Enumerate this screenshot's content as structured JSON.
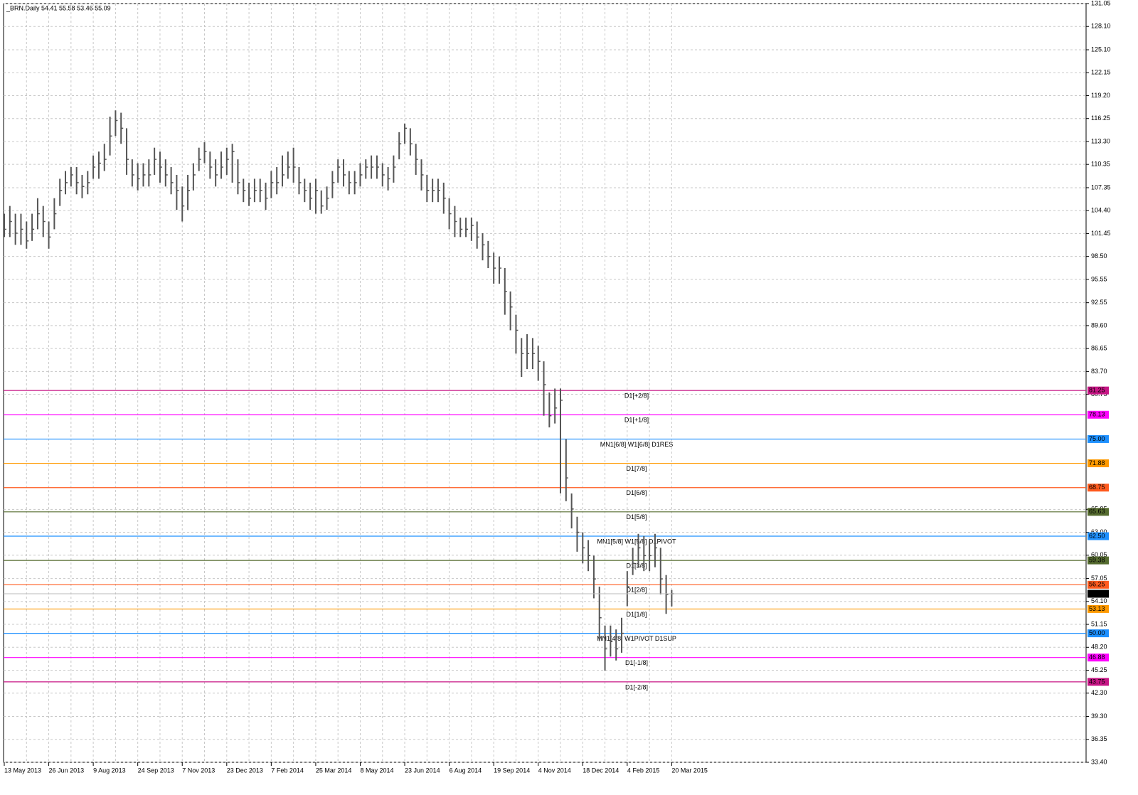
{
  "chart_data": {
    "type": "ohlc",
    "title": "_BRN.Daily  54.41 55.58 53.46 55.09",
    "categories": [
      "13 May 2013",
      null,
      null,
      null,
      null,
      null,
      null,
      null,
      "26 Jun 2013",
      null,
      null,
      null,
      null,
      null,
      null,
      null,
      "9 Aug 2013",
      null,
      null,
      null,
      null,
      null,
      null,
      null,
      "24 Sep 2013",
      null,
      null,
      null,
      null,
      null,
      null,
      null,
      "7 Nov 2013",
      null,
      null,
      null,
      null,
      null,
      null,
      null,
      "23 Dec 2013",
      null,
      null,
      null,
      null,
      null,
      null,
      null,
      "7 Feb 2014",
      null,
      null,
      null,
      null,
      null,
      null,
      null,
      "25 Mar 2014",
      null,
      null,
      null,
      null,
      null,
      null,
      null,
      "8 May 2014",
      null,
      null,
      null,
      null,
      null,
      null,
      null,
      "23 Jun 2014",
      null,
      null,
      null,
      null,
      null,
      null,
      null,
      "6 Aug 2014",
      null,
      null,
      null,
      null,
      null,
      null,
      null,
      "19 Sep 2014",
      null,
      null,
      null,
      null,
      null,
      null,
      null,
      "4 Nov 2014",
      null,
      null,
      null,
      null,
      null,
      null,
      null,
      "18 Dec 2014",
      null,
      null,
      null,
      null,
      null,
      null,
      null,
      "4 Feb 2015",
      null,
      null,
      null,
      null,
      null,
      null,
      null,
      "20 Mar 2015"
    ],
    "high": [
      104,
      105,
      104,
      104,
      103,
      104,
      106,
      105,
      103,
      106,
      108.5,
      109.5,
      110,
      110,
      109,
      109.5,
      111.5,
      112,
      113,
      116.5,
      117.3,
      117,
      115,
      111,
      110.5,
      110.5,
      111,
      112.5,
      112,
      111,
      110,
      109,
      107.5,
      109,
      110.5,
      112.5,
      113.2,
      112,
      111,
      112,
      112.5,
      113,
      111,
      108.5,
      108,
      108.5,
      108.5,
      108,
      109.5,
      110,
      111.5,
      112,
      112.5,
      110,
      108.5,
      108,
      108.5,
      107,
      107.5,
      109.5,
      111,
      111,
      109.5,
      109.5,
      110.5,
      111,
      111.5,
      111.5,
      110.5,
      110,
      111.5,
      114.5,
      115.6,
      115,
      113,
      111,
      109,
      108.5,
      108.5,
      108,
      106,
      105,
      103.5,
      103.5,
      103.5,
      103,
      101.5,
      100.5,
      99,
      98.5,
      97,
      94,
      91,
      88,
      88.5,
      88,
      87,
      85,
      81,
      81.5,
      81.5,
      75,
      68,
      65,
      63,
      62,
      60,
      56,
      51,
      51,
      50.5,
      52,
      58,
      61,
      62.8,
      62.5,
      62,
      62.8,
      61,
      57.5,
      55.58
    ],
    "low": [
      101,
      101,
      100,
      100,
      99.5,
      100.5,
      102,
      101,
      99.5,
      102,
      105,
      106.5,
      107.5,
      106.5,
      106,
      106.5,
      108.5,
      108.5,
      109.5,
      111.5,
      114,
      113,
      109,
      107.5,
      107,
      107.5,
      107.5,
      109,
      108,
      107.5,
      106.5,
      104.5,
      103,
      104.5,
      107,
      109.5,
      110.5,
      108.5,
      107.5,
      108.5,
      109,
      108,
      106.5,
      105.5,
      105,
      105.5,
      105.5,
      104.5,
      106,
      106.5,
      107.5,
      108.5,
      108,
      106.5,
      105.5,
      104.5,
      104,
      104,
      104.5,
      106,
      108,
      107.5,
      106.5,
      106.5,
      107.5,
      108.5,
      108.5,
      108.5,
      107.5,
      107,
      108,
      111,
      113,
      111.5,
      109,
      107,
      105.5,
      105.5,
      105.5,
      104,
      102,
      101,
      101,
      101,
      100.5,
      99.5,
      98,
      97,
      95,
      95,
      91,
      89,
      86,
      83,
      84,
      84,
      82.5,
      78,
      76.5,
      77,
      68,
      67,
      63.5,
      60.5,
      59,
      58,
      54.5,
      49,
      45.2,
      47,
      46.5,
      47.5,
      53.5,
      57.5,
      58.5,
      58,
      58,
      58.5,
      55,
      52.5,
      53.46
    ],
    "close": [
      102,
      103,
      101.5,
      102,
      100.5,
      102,
      104,
      103,
      101,
      104,
      107,
      108,
      109,
      108,
      107.5,
      108,
      110,
      110.5,
      111,
      114,
      116,
      115,
      111,
      109,
      108.5,
      109,
      109,
      111,
      110,
      109,
      108,
      107,
      105,
      107,
      109,
      111,
      112,
      110,
      109,
      110,
      111,
      112,
      108,
      107,
      106,
      107,
      107,
      106,
      108,
      108,
      109,
      110,
      110,
      108,
      107,
      106,
      107,
      105,
      106,
      108,
      110,
      109,
      108,
      108,
      109,
      110,
      110,
      110,
      109,
      108.5,
      110,
      113,
      115,
      113,
      111,
      109,
      107,
      107,
      107,
      106,
      104,
      103,
      102,
      102,
      102.5,
      101,
      100,
      98.5,
      97,
      97,
      94,
      92,
      89,
      86,
      86,
      86,
      85,
      82,
      78,
      79,
      80,
      70,
      66,
      63,
      61,
      60,
      57,
      52,
      48,
      49,
      48,
      50,
      56,
      59,
      61,
      60,
      60,
      61,
      57,
      55,
      55.09
    ],
    "color": "#555555",
    "ylim": [
      33.4,
      131.05
    ],
    "yticks": [
      131.05,
      {
        "value": 128.1,
        "label": "128.10"
      },
      {
        "value": 125.1,
        "label": "125.10"
      },
      122.15,
      {
        "value": 119.2,
        "label": "119.20"
      },
      116.25,
      {
        "value": 113.3,
        "label": "113.30"
      },
      110.35,
      107.35,
      {
        "value": 104.4,
        "label": "104.40"
      },
      101.45,
      {
        "value": 98.5,
        "label": "98.50"
      },
      95.55,
      92.55,
      {
        "value": 89.6,
        "label": "89.60"
      },
      86.65,
      {
        "value": 83.7,
        "label": "83.70"
      },
      80.75,
      65.95,
      {
        "value": 63,
        "label": "63.00"
      },
      60.05,
      57.05,
      {
        "value": 54.1,
        "label": "54.10"
      },
      51.15,
      {
        "value": 48.2,
        "label": "48.20"
      },
      45.25,
      {
        "value": 42.3,
        "label": "42.30"
      },
      {
        "value": 39.3,
        "label": "39.30"
      },
      36.35,
      {
        "value": 33.4,
        "label": "33.40"
      }
    ],
    "grid": true,
    "levels": {
      "names": [
        "D1[+2/8]",
        "D1[+1/8]",
        "MN1[6/8] W1[6/8] D1RES",
        "D1[7/8]",
        "D1[6/8]",
        "D1[5/8]",
        "MN1[5/8] W1[5/8] D1PIVOT",
        "D1[3/8]",
        "D1[2/8]",
        "D1[1/8]",
        "MN1[4/8] W1PIVOT D1SUP",
        "D1[-1/8]",
        "D1[-2/8]"
      ],
      "values": [
        81.25,
        78.13,
        75,
        71.88,
        68.75,
        65.63,
        62.5,
        59.38,
        56.25,
        53.13,
        50,
        46.88,
        43.75
      ],
      "value_labels": [
        "81.25",
        "78.13",
        "75.00",
        "71.88",
        "68.75",
        "65.63",
        "62.50",
        "59.38",
        "56.25",
        "53.13",
        "50.00",
        "46.88",
        "43.75"
      ],
      "colors": [
        "#c71585",
        "#ff00ff",
        "#1e90ff",
        "#ff9900",
        "#ff5a1e",
        "#556b2f",
        "#1e90ff",
        "#556b2f",
        "#ff5a1e",
        "#ff9900",
        "#1e90ff",
        "#ff00ff",
        "#c71585"
      ]
    }
  }
}
